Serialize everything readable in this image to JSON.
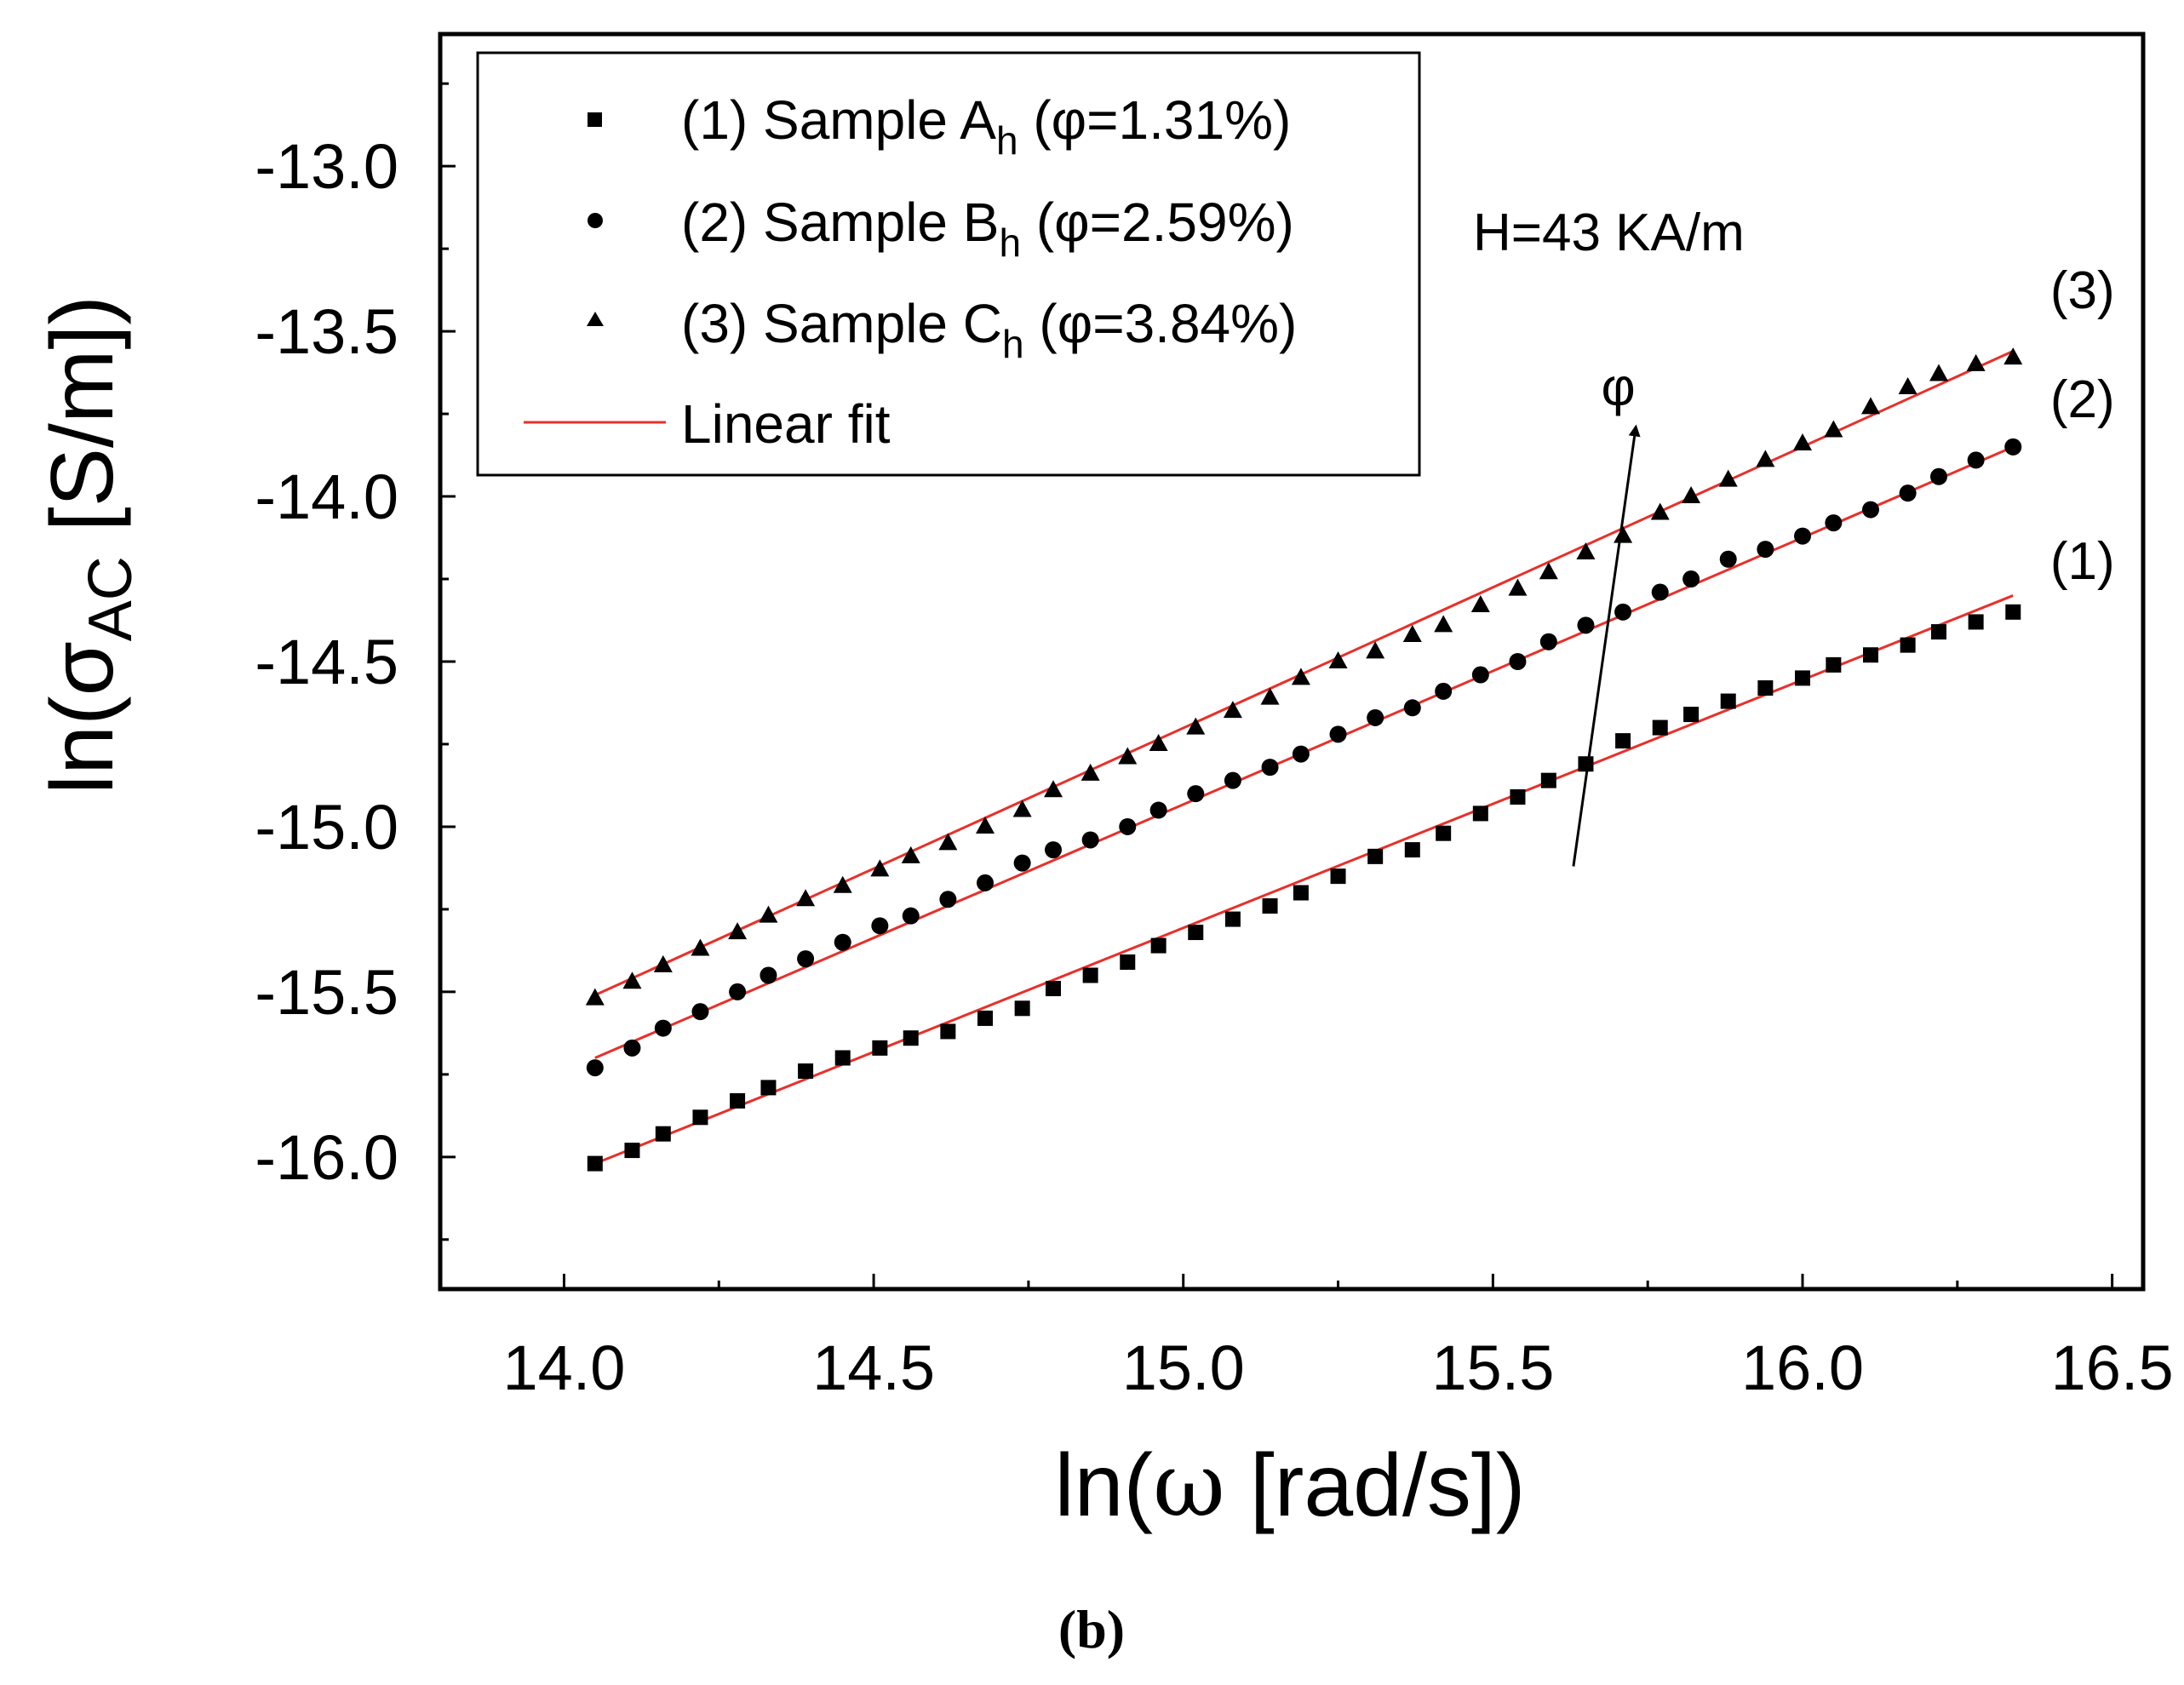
{
  "chart_data": {
    "type": "scatter",
    "title": "",
    "xlabel_prefix": "ln(",
    "xlabel_symbol": "ω",
    "xlabel_suffix": " [rad/s])",
    "ylabel_prefix": "ln(σ",
    "ylabel_sub": "AC",
    "ylabel_suffix": " [S/m])",
    "xlim": [
      13.8,
      16.55
    ],
    "ylim": [
      -16.4,
      -12.6
    ],
    "xticks": [
      14.0,
      14.5,
      15.0,
      15.5,
      16.0,
      16.5
    ],
    "xtick_labels": [
      "14.0",
      "14.5",
      "15.0",
      "15.5",
      "16.0",
      "16.5"
    ],
    "yticks": [
      -13.0,
      -13.5,
      -14.0,
      -14.5,
      -15.0,
      -15.5,
      -16.0
    ],
    "ytick_labels": [
      "-13.0",
      "-13.5",
      "-14.0",
      "-14.5",
      "-15.0",
      "-15.5",
      "-16.0"
    ],
    "x": [
      14.05,
      14.11,
      14.16,
      14.22,
      14.28,
      14.33,
      14.39,
      14.45,
      14.51,
      14.56,
      14.62,
      14.68,
      14.74,
      14.79,
      14.85,
      14.91,
      14.96,
      15.02,
      15.08,
      15.14,
      15.19,
      15.25,
      15.31,
      15.37,
      15.42,
      15.48,
      15.54,
      15.59,
      15.65,
      15.71,
      15.77,
      15.82,
      15.88,
      15.94,
      16.0,
      16.05,
      16.11,
      16.17,
      16.22,
      16.28,
      16.34
    ],
    "series": [
      {
        "name": "(1) Sample A_h (φ=1.31%)",
        "marker": "square",
        "values": [
          -16.02,
          -15.98,
          -15.93,
          -15.88,
          -15.83,
          -15.79,
          -15.74,
          -15.7,
          -15.67,
          -15.64,
          -15.62,
          -15.58,
          -15.55,
          -15.49,
          -15.45,
          -15.41,
          -15.36,
          -15.32,
          -15.28,
          -15.24,
          -15.2,
          -15.15,
          -15.09,
          -15.07,
          -15.02,
          -14.96,
          -14.91,
          -14.86,
          -14.81,
          -14.74,
          -14.7,
          -14.66,
          -14.62,
          -14.58,
          -14.55,
          -14.51,
          -14.48,
          -14.45,
          -14.41,
          -14.38,
          -14.35
        ],
        "fit": [
          -16.02,
          -14.3
        ]
      },
      {
        "name": "(2) Sample B_h (φ=2.59%)",
        "marker": "circle",
        "values": [
          -15.73,
          -15.67,
          -15.61,
          -15.56,
          -15.5,
          -15.45,
          -15.4,
          -15.35,
          -15.3,
          -15.27,
          -15.22,
          -15.17,
          -15.11,
          -15.07,
          -15.04,
          -15.0,
          -14.95,
          -14.9,
          -14.86,
          -14.82,
          -14.78,
          -14.72,
          -14.67,
          -14.64,
          -14.59,
          -14.54,
          -14.5,
          -14.44,
          -14.39,
          -14.35,
          -14.29,
          -14.25,
          -14.19,
          -14.16,
          -14.12,
          -14.08,
          -14.04,
          -13.99,
          -13.94,
          -13.89,
          -13.85
        ],
        "fit": [
          -15.7,
          -13.85
        ]
      },
      {
        "name": "(3) Sample C_h (φ=3.84%)",
        "marker": "triangle",
        "values": [
          -15.52,
          -15.47,
          -15.42,
          -15.37,
          -15.32,
          -15.27,
          -15.22,
          -15.18,
          -15.13,
          -15.09,
          -15.05,
          -15.0,
          -14.95,
          -14.89,
          -14.84,
          -14.79,
          -14.75,
          -14.7,
          -14.65,
          -14.61,
          -14.55,
          -14.5,
          -14.47,
          -14.42,
          -14.39,
          -14.33,
          -14.28,
          -14.23,
          -14.17,
          -14.12,
          -14.05,
          -14.0,
          -13.95,
          -13.89,
          -13.84,
          -13.8,
          -13.73,
          -13.67,
          -13.63,
          -13.6,
          -13.58
        ],
        "fit": [
          -15.51,
          -13.56
        ]
      }
    ],
    "fit_x": [
      14.05,
      16.34
    ],
    "fit_color": "#e8302a",
    "marker_color": "#000000",
    "legend": {
      "placement": "top-left",
      "entries": [
        {
          "prefix": "(1) Sample A",
          "sub": "h",
          "suffix": " (φ=1.31%)",
          "marker": "square"
        },
        {
          "prefix": "(2) Sample B",
          "sub": "h",
          "suffix": " (φ=2.59%)",
          "marker": "circle"
        },
        {
          "prefix": "(3) Sample C",
          "sub": "h",
          "suffix": " (φ=3.84%)",
          "marker": "triangle"
        },
        {
          "prefix": "Linear fit",
          "sub": "",
          "suffix": "",
          "marker": "line"
        }
      ]
    },
    "annotations": {
      "field": "H=43 KA/m",
      "arrow_label": "φ",
      "arrow_from": [
        15.63,
        -15.12
      ],
      "arrow_to": [
        15.73,
        -13.8
      ],
      "curve_labels": [
        {
          "text": "(3)",
          "x": 16.4,
          "y": -13.43
        },
        {
          "text": "(2)",
          "x": 16.4,
          "y": -13.76
        },
        {
          "text": "(1)",
          "x": 16.4,
          "y": -14.25
        }
      ]
    },
    "caption": "(b)"
  }
}
